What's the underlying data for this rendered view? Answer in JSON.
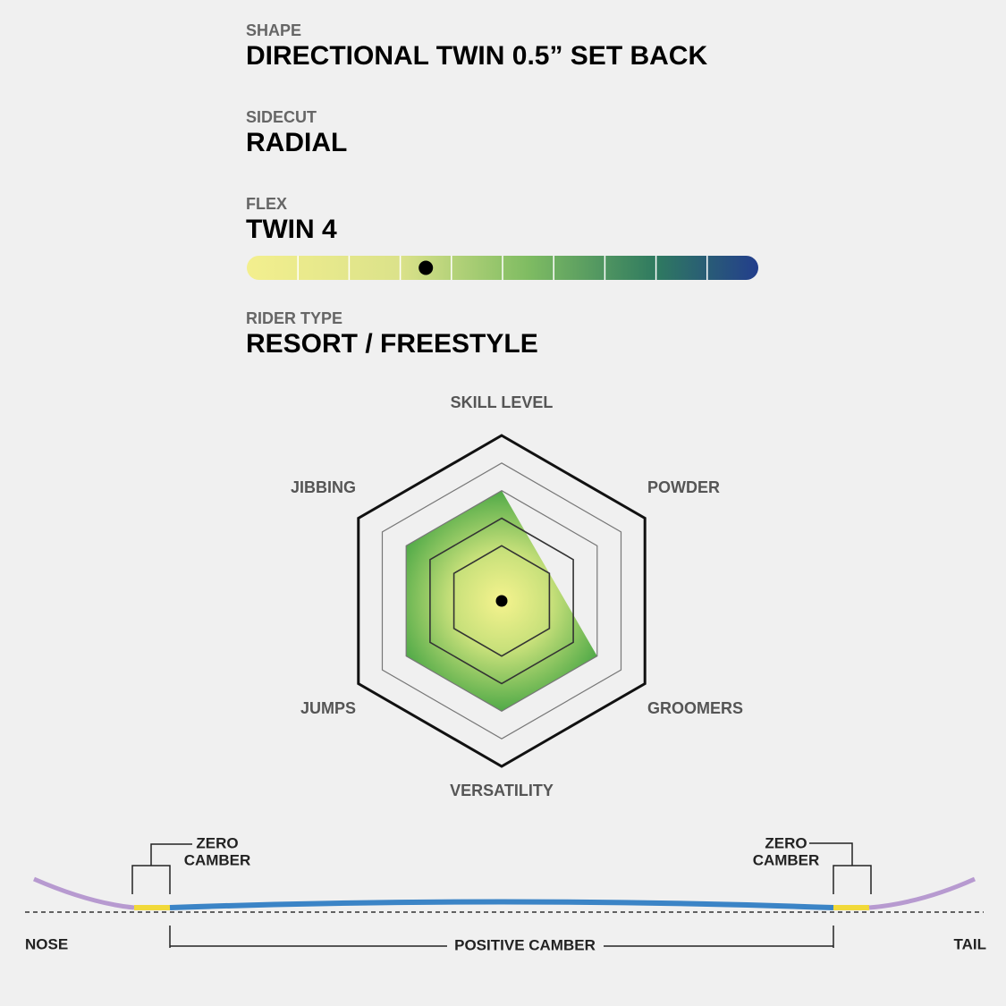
{
  "specs": [
    {
      "label": "SHAPE",
      "value": "DIRECTIONAL TWIN 0.5” SET BACK"
    },
    {
      "label": "SIDECUT",
      "value": "RADIAL"
    },
    {
      "label": "FLEX",
      "value": "TWIN 4"
    },
    {
      "label": "RIDER TYPE",
      "value": "RESORT / FREESTYLE"
    }
  ],
  "flex_scale": {
    "value": 4,
    "segments": 10
  },
  "radar": {
    "axes": [
      "SKILL LEVEL",
      "POWDER",
      "GROOMERS",
      "VERSATILITY",
      "JUMPS",
      "JIBBING"
    ],
    "values": [
      4,
      2,
      4,
      4,
      4,
      4
    ],
    "rlim": [
      0,
      6
    ],
    "rticks": [
      2,
      3,
      4,
      5,
      6
    ]
  },
  "camber": {
    "zero_left": [
      "ZERO",
      "CAMBER"
    ],
    "zero_right": [
      "ZERO",
      "CAMBER"
    ],
    "positive": "POSITIVE CAMBER",
    "nose": "NOSE",
    "tail": "TAIL"
  }
}
